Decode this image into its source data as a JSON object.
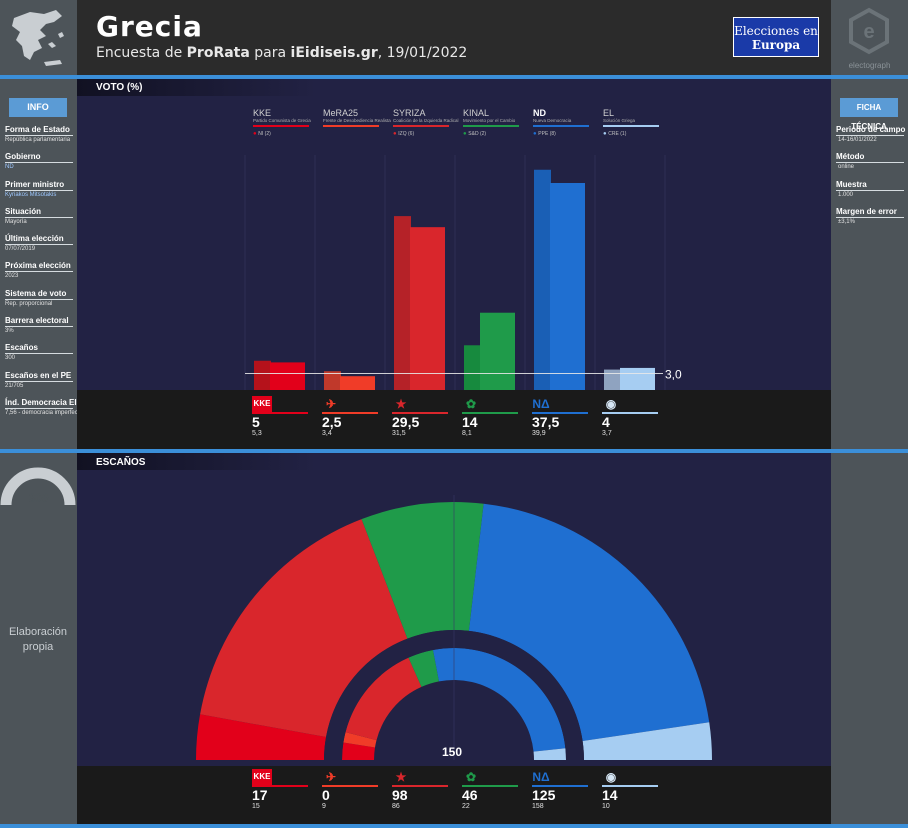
{
  "header": {
    "title": "Grecia",
    "subtitle_prefix": "Encuesta de ",
    "pollster": "ProRata",
    "subtitle_mid": " para ",
    "client": "iEidiseis.gr",
    "date": ", 19/01/2022",
    "badge_line1": "Elecciones en",
    "badge_line2": "Europa",
    "brand": "electograph"
  },
  "info": {
    "heading": "INFO",
    "items": [
      {
        "label": "Forma de Estado",
        "value": "República parlamentaria",
        "highlight": false
      },
      {
        "label": "Gobierno",
        "value": "ND",
        "highlight": true
      },
      {
        "label": "Primer ministro",
        "value": "Kyriakos Mitsotakis",
        "highlight": true
      },
      {
        "label": "Situación",
        "value": "Mayoría",
        "highlight": false
      },
      {
        "label": "Última elección",
        "value": "07/07/2019",
        "highlight": false
      },
      {
        "label": "Próxima elección",
        "value": "2023",
        "highlight": false
      },
      {
        "label": "Sistema de voto",
        "value": "Rep. proporcional",
        "highlight": false
      },
      {
        "label": "Barrera electoral",
        "value": "3%",
        "highlight": false
      },
      {
        "label": "Escaños",
        "value": "300",
        "highlight": false
      },
      {
        "label": "Escaños en el PE",
        "value": "21/705",
        "highlight": false
      },
      {
        "label": "Índ. Democracia EIU",
        "value": "7,56 - democracia imperfecta (2021)",
        "highlight": false
      }
    ]
  },
  "ficha": {
    "heading": "FICHA TÉCNICA",
    "items": [
      {
        "label": "Periodo de campo",
        "value": "14-16/01/2022"
      },
      {
        "label": "Método",
        "value": "online"
      },
      {
        "label": "Muestra",
        "value": "1.000"
      },
      {
        "label": "Margen de error",
        "value": "±3,1%"
      }
    ]
  },
  "sections": {
    "vote_title": "VOTO (%)",
    "seats_title": "ESCAÑOS",
    "total_seats": "300",
    "majority": "150",
    "elaboration": "Elaboración propia",
    "threshold_label": "3,0"
  },
  "parties": [
    {
      "short": "KKE",
      "full": "Partido Comunista de Grecia",
      "group": "NI (2)",
      "color": "#e2001a",
      "prev_color": "#b5121b",
      "logo": "KKE",
      "vote": "5",
      "vote_prev": "5,3",
      "seats": "17",
      "seats_prev": "15"
    },
    {
      "short": "MeRA25",
      "full": "Frente de Desobediencia Realista",
      "group": "",
      "color": "#f03c28",
      "prev_color": "#c0392b",
      "logo": "✈",
      "vote": "2,5",
      "vote_prev": "3,4",
      "seats": "0",
      "seats_prev": "9"
    },
    {
      "short": "SYRIZA",
      "full": "Coalición de la Izquierda Radical",
      "group": "IZQ (6)",
      "color": "#d9262c",
      "prev_color": "#b52228",
      "logo": "★",
      "vote": "29,5",
      "vote_prev": "31,5",
      "seats": "98",
      "seats_prev": "86"
    },
    {
      "short": "KINAL",
      "full": "Movimiento por el Cambio",
      "group": "S&D (2)",
      "color": "#1f9b4a",
      "prev_color": "#178a3e",
      "logo": "✿",
      "vote": "14",
      "vote_prev": "8,1",
      "seats": "46",
      "seats_prev": "22"
    },
    {
      "short": "ND",
      "full": "Nueva Democracia",
      "group": "PPE (8)",
      "color": "#1f6fd1",
      "prev_color": "#1a5fb5",
      "logo": "ΝΔ",
      "vote": "37,5",
      "vote_prev": "39,9",
      "seats": "125",
      "seats_prev": "158"
    },
    {
      "short": "EL",
      "full": "Solución Griega",
      "group": "CRE (1)",
      "color": "#a6cdf2",
      "prev_color": "#8fa3c0",
      "logo": "◉",
      "vote": "4",
      "vote_prev": "3,7",
      "seats": "14",
      "seats_prev": "10"
    }
  ],
  "chart_data": [
    {
      "type": "bar",
      "title": "VOTO (%)",
      "categories": [
        "KKE",
        "MeRA25",
        "SYRIZA",
        "KINAL",
        "ND",
        "EL"
      ],
      "series": [
        {
          "name": "",
          "values": [
            5.3,
            3.4,
            31.5,
            8.1,
            39.9,
            3.7
          ]
        },
        {
          "name": "",
          "values": [
            5,
            2.5,
            29.5,
            14,
            37.5,
            4
          ]
        }
      ],
      "threshold": 3.0,
      "ylim": [
        0,
        45
      ]
    },
    {
      "type": "pie",
      "title": "ESCAÑOS",
      "categories": [
        "KKE",
        "MeRA25",
        "SYRIZA",
        "KINAL",
        "ND",
        "EL"
      ],
      "series": [
        {
          "name": "",
          "values": [
            17,
            0,
            98,
            46,
            125,
            14
          ]
        },
        {
          "name": "",
          "values": [
            15,
            9,
            86,
            22,
            158,
            10
          ]
        }
      ],
      "total": 300,
      "majority": 150
    }
  ]
}
